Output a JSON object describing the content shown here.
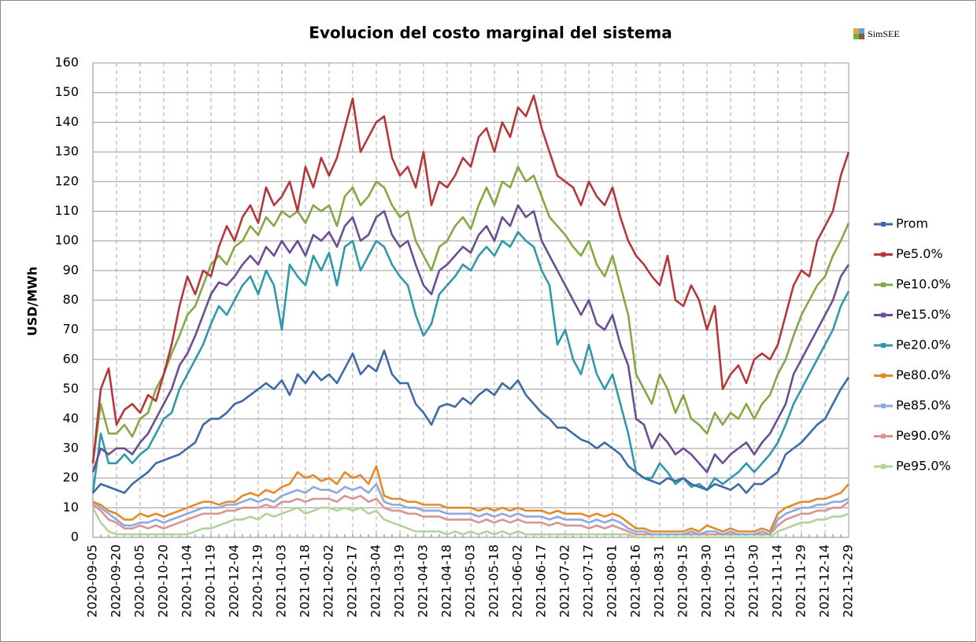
{
  "chart_data": {
    "type": "line",
    "title": "Evolucion del costo marginal del sistema",
    "logo_text": "SimSEE",
    "y_label": "USD/MWh",
    "categories": [
      "2020-09-05",
      null,
      null,
      "2020-09-20",
      null,
      null,
      "2020-10-05",
      null,
      null,
      "2020-10-20",
      null,
      null,
      "2020-11-04",
      null,
      null,
      "2020-11-19",
      null,
      null,
      "2020-12-04",
      null,
      null,
      "2020-12-19",
      null,
      null,
      "2021-01-03",
      null,
      null,
      "2021-01-18",
      null,
      null,
      "2021-02-02",
      null,
      null,
      "2021-02-17",
      null,
      null,
      "2021-03-04",
      null,
      null,
      "2021-03-19",
      null,
      null,
      "2021-04-03",
      null,
      null,
      "2021-04-18",
      null,
      null,
      "2021-05-03",
      null,
      null,
      "2021-05-18",
      null,
      null,
      "2021-06-02",
      null,
      null,
      "2021-06-17",
      null,
      null,
      "2021-07-02",
      null,
      null,
      "2021-07-17",
      null,
      null,
      "2021-08-01",
      null,
      null,
      "2021-08-16",
      null,
      null,
      "2021-08-31",
      null,
      null,
      "2021-09-15",
      null,
      null,
      "2021-09-30",
      null,
      null,
      "2021-10-15",
      null,
      null,
      "2021-10-30",
      null,
      null,
      "2021-11-14",
      null,
      null,
      "2021-11-29",
      null,
      null,
      "2021-12-14",
      null,
      null,
      "2021-12-29"
    ],
    "ylim": [
      0,
      160
    ],
    "yticks": [
      0,
      10,
      20,
      30,
      40,
      50,
      60,
      70,
      80,
      90,
      100,
      110,
      120,
      130,
      140,
      150,
      160
    ],
    "grid": true,
    "legend": "right",
    "series": [
      {
        "name": "Prom",
        "color": "#3f6aa8",
        "values": [
          15,
          18,
          17,
          16,
          15,
          18,
          20,
          22,
          25,
          26,
          27,
          28,
          30,
          32,
          38,
          40,
          40,
          42,
          45,
          46,
          48,
          50,
          52,
          50,
          53,
          48,
          55,
          52,
          56,
          53,
          55,
          52,
          57,
          62,
          55,
          58,
          56,
          63,
          55,
          52,
          52,
          45,
          42,
          38,
          44,
          45,
          44,
          47,
          45,
          48,
          50,
          48,
          52,
          50,
          53,
          48,
          45,
          42,
          40,
          37,
          37,
          35,
          33,
          32,
          30,
          32,
          30,
          28,
          24,
          22,
          20,
          19,
          18,
          20,
          19,
          20,
          18,
          17,
          16,
          18,
          17,
          16,
          18,
          15,
          18,
          18,
          20,
          22,
          28,
          30,
          32,
          35,
          38,
          40,
          45,
          50,
          54
        ]
      },
      {
        "name": "Pe5.0%",
        "color": "#b5373b",
        "values": [
          25,
          50,
          57,
          38,
          43,
          45,
          42,
          48,
          46,
          55,
          65,
          78,
          88,
          82,
          90,
          88,
          98,
          105,
          100,
          108,
          112,
          106,
          118,
          112,
          115,
          120,
          110,
          125,
          118,
          128,
          122,
          128,
          138,
          148,
          130,
          135,
          140,
          142,
          128,
          122,
          125,
          118,
          130,
          112,
          120,
          118,
          122,
          128,
          125,
          135,
          138,
          130,
          140,
          135,
          145,
          142,
          149,
          138,
          130,
          122,
          120,
          118,
          112,
          120,
          115,
          112,
          118,
          108,
          100,
          95,
          92,
          88,
          85,
          95,
          80,
          78,
          85,
          80,
          70,
          78,
          50,
          55,
          58,
          52,
          60,
          62,
          60,
          65,
          75,
          85,
          90,
          88,
          100,
          105,
          110,
          122,
          130
        ]
      },
      {
        "name": "Pe10.0%",
        "color": "#86a844",
        "values": [
          25,
          45,
          35,
          35,
          38,
          34,
          40,
          42,
          50,
          55,
          62,
          68,
          75,
          78,
          85,
          92,
          95,
          92,
          98,
          100,
          105,
          102,
          108,
          105,
          110,
          108,
          110,
          106,
          112,
          110,
          112,
          105,
          115,
          118,
          112,
          115,
          120,
          118,
          112,
          108,
          110,
          100,
          95,
          90,
          98,
          100,
          105,
          108,
          104,
          112,
          118,
          112,
          120,
          118,
          125,
          120,
          122,
          115,
          108,
          105,
          102,
          98,
          95,
          100,
          92,
          88,
          95,
          85,
          75,
          55,
          50,
          45,
          55,
          50,
          42,
          48,
          40,
          38,
          35,
          42,
          38,
          42,
          40,
          45,
          40,
          45,
          48,
          55,
          60,
          68,
          75,
          80,
          85,
          88,
          95,
          100,
          106
        ]
      },
      {
        "name": "Pe15.0%",
        "color": "#6b4d94",
        "values": [
          22,
          30,
          28,
          30,
          30,
          28,
          32,
          35,
          40,
          45,
          50,
          58,
          62,
          68,
          75,
          82,
          86,
          85,
          88,
          92,
          95,
          92,
          98,
          95,
          100,
          96,
          100,
          95,
          102,
          100,
          103,
          98,
          105,
          108,
          100,
          102,
          108,
          110,
          102,
          98,
          100,
          92,
          85,
          82,
          90,
          92,
          95,
          98,
          96,
          102,
          105,
          100,
          108,
          105,
          112,
          108,
          110,
          100,
          95,
          90,
          85,
          80,
          75,
          80,
          72,
          70,
          75,
          65,
          58,
          40,
          38,
          30,
          35,
          32,
          28,
          30,
          28,
          25,
          22,
          28,
          25,
          28,
          30,
          32,
          28,
          32,
          35,
          40,
          45,
          55,
          60,
          65,
          70,
          75,
          80,
          88,
          92
        ]
      },
      {
        "name": "Pe20.0%",
        "color": "#2f98ad",
        "values": [
          15,
          35,
          25,
          25,
          28,
          25,
          28,
          30,
          35,
          40,
          42,
          50,
          55,
          60,
          65,
          72,
          78,
          75,
          80,
          85,
          88,
          82,
          90,
          85,
          70,
          92,
          88,
          85,
          95,
          90,
          96,
          85,
          98,
          100,
          90,
          95,
          100,
          98,
          92,
          88,
          85,
          75,
          68,
          72,
          82,
          85,
          88,
          92,
          90,
          95,
          98,
          95,
          100,
          98,
          103,
          100,
          98,
          90,
          85,
          65,
          70,
          60,
          55,
          65,
          55,
          50,
          55,
          45,
          35,
          22,
          20,
          20,
          25,
          22,
          18,
          20,
          17,
          18,
          16,
          20,
          18,
          20,
          22,
          25,
          22,
          25,
          28,
          32,
          38,
          45,
          50,
          55,
          60,
          65,
          70,
          78,
          83
        ]
      },
      {
        "name": "Pe80.0%",
        "color": "#e48a2b",
        "values": [
          12,
          11,
          9,
          8,
          6,
          6,
          8,
          7,
          8,
          7,
          8,
          9,
          10,
          11,
          12,
          12,
          11,
          12,
          12,
          14,
          15,
          14,
          16,
          15,
          17,
          18,
          22,
          20,
          21,
          19,
          20,
          18,
          22,
          20,
          21,
          18,
          24,
          14,
          13,
          13,
          12,
          12,
          11,
          11,
          11,
          10,
          10,
          10,
          10,
          9,
          10,
          9,
          10,
          9,
          10,
          9,
          9,
          9,
          8,
          9,
          8,
          8,
          8,
          7,
          8,
          7,
          8,
          7,
          5,
          3,
          3,
          2,
          2,
          2,
          2,
          2,
          3,
          2,
          4,
          3,
          2,
          3,
          2,
          2,
          2,
          3,
          2,
          8,
          10,
          11,
          12,
          12,
          13,
          13,
          14,
          15,
          18
        ]
      },
      {
        "name": "Pe85.0%",
        "color": "#8ea9db",
        "values": [
          12,
          10,
          8,
          6,
          4,
          4,
          5,
          5,
          6,
          5,
          6,
          7,
          8,
          9,
          10,
          10,
          10,
          11,
          11,
          12,
          13,
          12,
          13,
          12,
          14,
          15,
          16,
          15,
          17,
          16,
          16,
          15,
          17,
          16,
          17,
          15,
          18,
          12,
          11,
          11,
          10,
          10,
          9,
          9,
          9,
          8,
          8,
          8,
          8,
          7,
          8,
          7,
          8,
          7,
          8,
          7,
          7,
          7,
          6,
          7,
          6,
          6,
          6,
          5,
          6,
          5,
          6,
          5,
          3,
          2,
          2,
          1,
          1,
          1,
          1,
          1,
          2,
          1,
          2,
          2,
          1,
          2,
          1,
          1,
          1,
          2,
          1,
          6,
          8,
          9,
          10,
          10,
          11,
          11,
          12,
          12,
          13
        ]
      },
      {
        "name": "Pe90.0%",
        "color": "#d89595",
        "values": [
          11,
          9,
          6,
          5,
          3,
          3,
          4,
          3,
          4,
          3,
          4,
          5,
          6,
          7,
          8,
          8,
          8,
          9,
          9,
          10,
          10,
          10,
          11,
          10,
          12,
          12,
          13,
          12,
          13,
          13,
          13,
          12,
          14,
          13,
          14,
          12,
          13,
          10,
          9,
          9,
          8,
          8,
          7,
          7,
          7,
          6,
          6,
          6,
          6,
          5,
          6,
          5,
          6,
          5,
          6,
          5,
          5,
          5,
          4,
          5,
          4,
          4,
          4,
          3,
          4,
          3,
          4,
          3,
          2,
          1,
          1,
          1,
          1,
          1,
          1,
          1,
          1,
          1,
          1,
          1,
          1,
          1,
          1,
          1,
          1,
          1,
          1,
          4,
          6,
          7,
          8,
          8,
          9,
          9,
          10,
          10,
          12
        ]
      },
      {
        "name": "Pe95.0%",
        "color": "#b3d39a",
        "values": [
          10,
          5,
          2,
          1,
          1,
          1,
          1,
          1,
          1,
          1,
          1,
          1,
          1,
          2,
          3,
          3,
          4,
          5,
          6,
          6,
          7,
          6,
          8,
          7,
          8,
          9,
          10,
          8,
          9,
          10,
          10,
          9,
          10,
          9,
          10,
          8,
          9,
          6,
          5,
          4,
          3,
          2,
          2,
          2,
          2,
          1,
          2,
          1,
          2,
          1,
          2,
          1,
          2,
          1,
          2,
          1,
          1,
          1,
          1,
          1,
          1,
          1,
          1,
          1,
          1,
          1,
          1,
          1,
          1,
          0,
          0,
          0,
          0,
          0,
          0,
          0,
          0,
          0,
          0,
          0,
          0,
          0,
          0,
          0,
          0,
          0,
          0,
          2,
          3,
          4,
          5,
          5,
          6,
          6,
          7,
          7,
          8
        ]
      }
    ]
  }
}
